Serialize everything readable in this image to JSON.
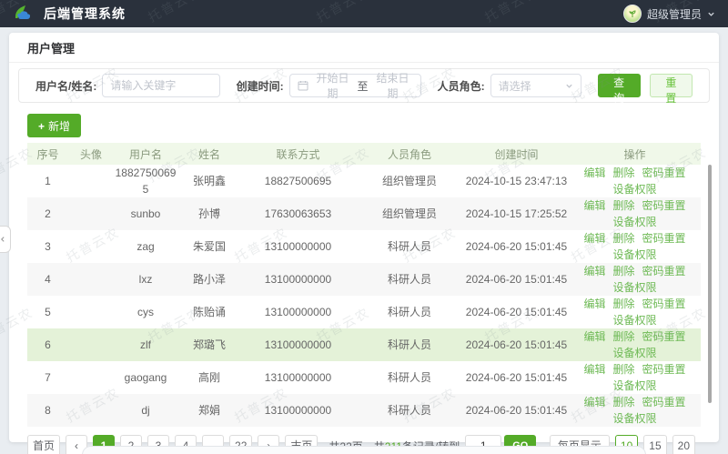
{
  "watermark": {
    "text": "托普云农"
  },
  "topbar": {
    "title": "后端管理系统",
    "user": "超级管理员"
  },
  "page": {
    "title": "用户管理"
  },
  "filters": {
    "username_label": "用户名/姓名:",
    "username_placeholder": "请输入关键字",
    "date_label": "创建时间:",
    "date_start_placeholder": "开始日期",
    "date_separator": "至",
    "date_end_placeholder": "结束日期",
    "role_label": "人员角色:",
    "role_placeholder": "请选择",
    "search_button": "查询",
    "reset_button": "重置"
  },
  "toolbar": {
    "add_icon": "+",
    "add_label": "新增"
  },
  "table": {
    "headers": [
      "序号",
      "头像",
      "用户名",
      "姓名",
      "联系方式",
      "人员角色",
      "创建时间",
      "操作"
    ],
    "actions": [
      "编辑",
      "删除",
      "密码重置",
      "设备权限"
    ],
    "rows": [
      {
        "no": "1",
        "username": "18827500695",
        "name": "张明鑫",
        "phone": "18827500695",
        "role": "组织管理员",
        "created": "2024-10-15 23:47:13",
        "highlight": false
      },
      {
        "no": "2",
        "username": "sunbo",
        "name": "孙博",
        "phone": "17630063653",
        "role": "组织管理员",
        "created": "2024-10-15 17:25:52",
        "highlight": false
      },
      {
        "no": "3",
        "username": "zag",
        "name": "朱爱国",
        "phone": "13100000000",
        "role": "科研人员",
        "created": "2024-06-20 15:01:45",
        "highlight": false
      },
      {
        "no": "4",
        "username": "lxz",
        "name": "路小泽",
        "phone": "13100000000",
        "role": "科研人员",
        "created": "2024-06-20 15:01:45",
        "highlight": false
      },
      {
        "no": "5",
        "username": "cys",
        "name": "陈贻诵",
        "phone": "13100000000",
        "role": "科研人员",
        "created": "2024-06-20 15:01:45",
        "highlight": false
      },
      {
        "no": "6",
        "username": "zlf",
        "name": "郑璐飞",
        "phone": "13100000000",
        "role": "科研人员",
        "created": "2024-06-20 15:01:45",
        "highlight": true
      },
      {
        "no": "7",
        "username": "gaogang",
        "name": "高刚",
        "phone": "13100000000",
        "role": "科研人员",
        "created": "2024-06-20 15:01:45",
        "highlight": false
      },
      {
        "no": "8",
        "username": "dj",
        "name": "郑娟",
        "phone": "13100000000",
        "role": "科研人员",
        "created": "2024-06-20 15:01:45",
        "highlight": false
      }
    ]
  },
  "pagination": {
    "first": "首页",
    "prev": "‹",
    "pages": [
      "1",
      "2",
      "3",
      "4",
      "···",
      "22"
    ],
    "active_page": "1",
    "next": "›",
    "last": "末页",
    "total_pages": "共22页",
    "records_prefix": "共",
    "records_num": "211",
    "records_suffix": "条记录/转到",
    "goto_value": "1",
    "go_button": "GO",
    "page_size_label": "每页显示",
    "page_sizes": [
      "10",
      "15",
      "20"
    ],
    "active_size": "10"
  },
  "colors": {
    "primary_green": "#54ab28",
    "link_green": "#6db954",
    "header_bg": "#f0f8e9",
    "highlight_row": "#e4f2d8",
    "topbar_bg": "#2a313c"
  }
}
